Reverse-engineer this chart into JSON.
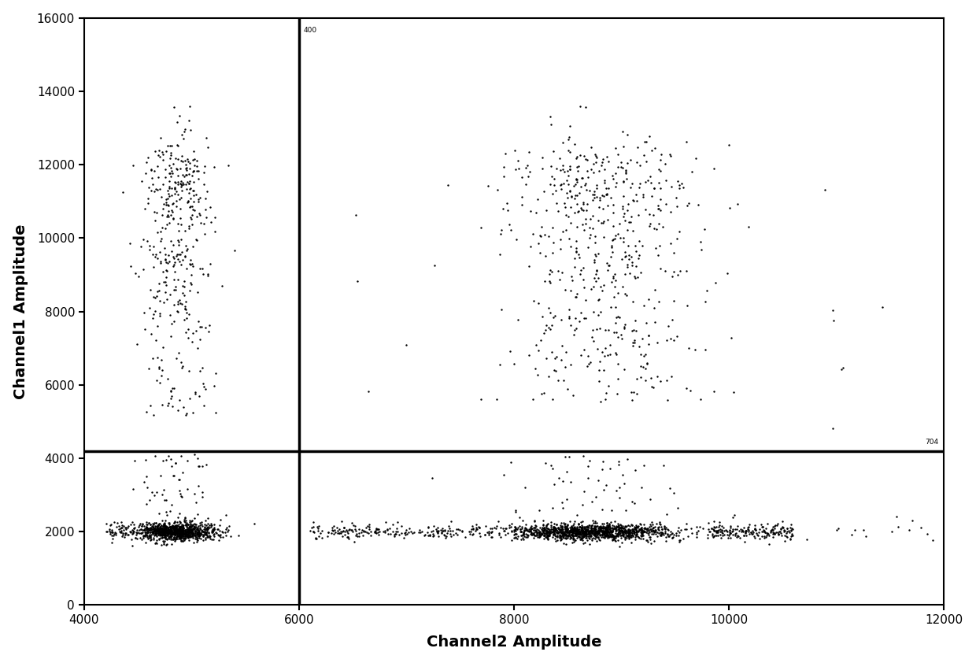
{
  "xlim": [
    4000,
    12000
  ],
  "ylim": [
    0,
    16000
  ],
  "xticks": [
    4000,
    6000,
    8000,
    10000,
    12000
  ],
  "yticks": [
    0,
    2000,
    4000,
    6000,
    8000,
    10000,
    12000,
    14000,
    16000
  ],
  "xlabel": "Channel2 Amplitude",
  "ylabel": "Channel1 Amplitude",
  "hline_y": 4200,
  "vline_x": 6000,
  "dot_color": "#000000",
  "dot_size": 3,
  "line_color": "#000000",
  "line_width": 2.5,
  "background_color": "#ffffff",
  "seed": 42
}
